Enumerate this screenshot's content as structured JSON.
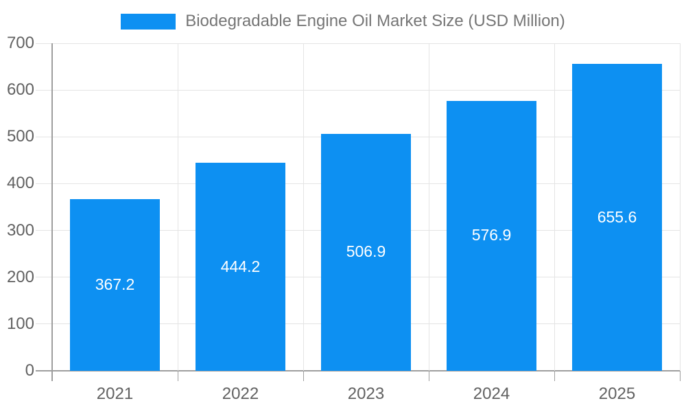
{
  "chart_data": {
    "type": "bar",
    "title": "Biodegradable Engine Oil Market Size (USD Million)",
    "legend_position": "top",
    "categories": [
      "2021",
      "2022",
      "2023",
      "2024",
      "2025"
    ],
    "values": [
      367.2,
      444.2,
      506.9,
      576.9,
      655.6
    ],
    "xlabel": "",
    "ylabel": "",
    "ylim": [
      0,
      700
    ],
    "yticks": [
      0,
      100,
      200,
      300,
      400,
      500,
      600,
      700
    ],
    "grid": true,
    "colors": {
      "bar": "#0d90f2",
      "axis": "#9e9e9e",
      "grid": "#e4e4e4",
      "tick_label": "#616161",
      "legend_text": "#757575",
      "value_label": "#ffffff",
      "background": "#ffffff"
    }
  }
}
